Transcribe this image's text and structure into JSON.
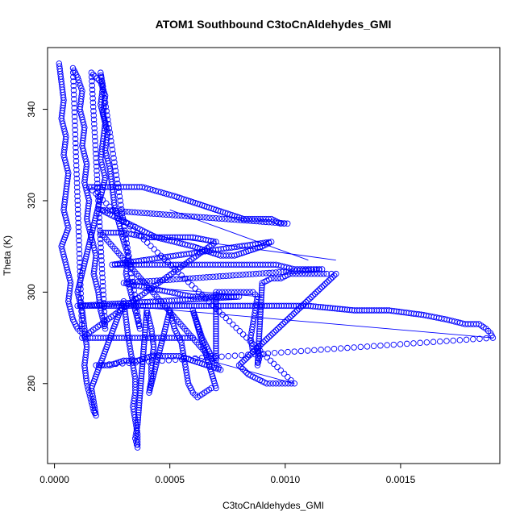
{
  "chart_data": {
    "type": "scatter",
    "title": "ATOM1 Southbound C3toCnAldehydes_GMI",
    "xlabel": "C3toCnAldehydes_GMI",
    "ylabel": "Theta (K)",
    "xlim": [
      -3e-05,
      0.00193
    ],
    "ylim": [
      262.5,
      353.5
    ],
    "xticks": [
      0,
      0.0005,
      0.001,
      0.0015
    ],
    "xtick_labels": [
      "0.0000",
      "0.0005",
      "0.0010",
      "0.0015"
    ],
    "yticks": [
      280,
      300,
      320,
      340
    ],
    "ytick_labels": [
      "280",
      "300",
      "320",
      "340"
    ],
    "grid": false,
    "color": "#0000ff",
    "series": [
      {
        "points": [
          [
            2e-05,
            350
          ],
          [
            3e-05,
            346
          ],
          [
            4e-05,
            342
          ],
          [
            3e-05,
            338
          ],
          [
            5e-05,
            334
          ],
          [
            4e-05,
            330
          ],
          [
            6e-05,
            326
          ],
          [
            5e-05,
            322
          ],
          [
            4e-05,
            318
          ],
          [
            6e-05,
            314
          ],
          [
            3e-05,
            310
          ],
          [
            5e-05,
            306
          ],
          [
            7e-05,
            302
          ],
          [
            6e-05,
            298
          ],
          [
            8e-05,
            294
          ],
          [
            0.0001,
            292
          ],
          [
            0.00012,
            291
          ],
          [
            8e-05,
            349
          ],
          [
            0.0001,
            347
          ],
          [
            0.00012,
            344
          ],
          [
            0.00011,
            340
          ],
          [
            0.00013,
            336
          ],
          [
            0.00012,
            332
          ],
          [
            0.00014,
            328
          ],
          [
            0.00013,
            324
          ],
          [
            0.00015,
            320
          ],
          [
            0.00014,
            316
          ],
          [
            0.00016,
            312
          ],
          [
            0.00018,
            308
          ],
          [
            0.00017,
            304
          ],
          [
            0.00019,
            300
          ],
          [
            0.0002,
            296
          ],
          [
            0.00022,
            292
          ],
          [
            0.00016,
            348
          ],
          [
            0.0002,
            346
          ],
          [
            0.00022,
            343
          ],
          [
            0.00021,
            339
          ],
          [
            0.00023,
            335
          ],
          [
            0.00022,
            331
          ],
          [
            0.00024,
            327
          ],
          [
            0.00025,
            323
          ],
          [
            0.00026,
            319
          ],
          [
            0.00028,
            315
          ],
          [
            0.0003,
            311
          ],
          [
            0.00032,
            308
          ],
          [
            0.00031,
            304
          ],
          [
            0.00033,
            300
          ],
          [
            0.00035,
            296
          ],
          [
            0.00037,
            292
          ],
          [
            0.0002,
            348
          ],
          [
            0.00021,
            345
          ],
          [
            0.0002,
            341
          ],
          [
            0.00022,
            337
          ],
          [
            0.00021,
            333
          ],
          [
            0.0002,
            329
          ],
          [
            0.00022,
            325
          ],
          [
            0.0001,
            300
          ],
          [
            0.00012,
            296
          ],
          [
            0.00013,
            292
          ],
          [
            0.00014,
            288
          ],
          [
            0.00013,
            284
          ],
          [
            0.00014,
            280
          ],
          [
            0.00015,
            278
          ],
          [
            0.00016,
            276
          ],
          [
            0.00017,
            274
          ],
          [
            0.00018,
            273
          ],
          [
            0.00017,
            276
          ],
          [
            0.00016,
            279
          ],
          [
            0.0003,
            298
          ],
          [
            0.00031,
            294
          ],
          [
            0.00032,
            290
          ],
          [
            0.00033,
            287
          ],
          [
            0.00034,
            284
          ],
          [
            0.00035,
            281
          ],
          [
            0.00035,
            278
          ],
          [
            0.00034,
            275
          ],
          [
            0.00035,
            272
          ],
          [
            0.00036,
            269
          ],
          [
            0.00036,
            266
          ],
          [
            0.00035,
            268
          ],
          [
            0.00036,
            271
          ],
          [
            0.0004,
            296
          ],
          [
            0.00042,
            292
          ],
          [
            0.00043,
            288
          ],
          [
            0.00042,
            284
          ],
          [
            0.00042,
            281
          ],
          [
            0.00041,
            278
          ],
          [
            0.0005,
            296
          ],
          [
            0.00052,
            292
          ],
          [
            0.00055,
            289
          ],
          [
            0.00056,
            286
          ],
          [
            0.00057,
            283
          ],
          [
            0.00058,
            280
          ],
          [
            0.0006,
            278
          ],
          [
            0.00062,
            277
          ],
          [
            0.00065,
            278
          ],
          [
            0.00068,
            279
          ],
          [
            0.0007,
            279
          ],
          [
            0.0006,
            296
          ],
          [
            0.00062,
            293
          ],
          [
            0.00064,
            290
          ],
          [
            0.00066,
            288
          ],
          [
            0.00068,
            286
          ],
          [
            0.0007,
            285
          ],
          [
            0.0007,
            300
          ],
          [
            0.00074,
            300
          ],
          [
            0.00078,
            300
          ],
          [
            0.00082,
            300
          ],
          [
            0.00086,
            300
          ],
          [
            0.00088,
            299
          ],
          [
            0.00087,
            296
          ],
          [
            0.00086,
            293
          ],
          [
            0.00085,
            290
          ],
          [
            0.00086,
            287
          ],
          [
            0.00088,
            287
          ],
          [
            0.00089,
            286
          ],
          [
            0.00088,
            284
          ],
          [
            0.0009,
            302
          ],
          [
            0.00094,
            303
          ],
          [
            0.00098,
            303
          ],
          [
            0.00102,
            304
          ],
          [
            0.00106,
            304
          ],
          [
            0.0011,
            304
          ],
          [
            0.00114,
            304
          ],
          [
            0.00118,
            304
          ],
          [
            0.0012,
            304
          ],
          [
            0.00122,
            304
          ],
          [
            0.0008,
            284
          ],
          [
            0.00084,
            282
          ],
          [
            0.00088,
            281
          ],
          [
            0.00092,
            280
          ],
          [
            0.00096,
            280
          ],
          [
            0.001,
            280
          ],
          [
            0.00104,
            280
          ],
          [
            0.00015,
            323
          ],
          [
            0.00022,
            323
          ],
          [
            0.0003,
            323
          ],
          [
            0.00038,
            323
          ],
          [
            0.00045,
            322
          ],
          [
            0.00052,
            321
          ],
          [
            0.00058,
            320
          ],
          [
            0.00064,
            319
          ],
          [
            0.0007,
            318
          ],
          [
            0.00076,
            317
          ],
          [
            0.00082,
            316
          ],
          [
            0.00088,
            316
          ],
          [
            0.00094,
            316
          ],
          [
            0.00098,
            315
          ],
          [
            0.00101,
            315
          ],
          [
            0.0002,
            318
          ],
          [
            0.00028,
            316
          ],
          [
            0.00036,
            314
          ],
          [
            0.00044,
            312
          ],
          [
            0.00052,
            311
          ],
          [
            0.0006,
            310
          ],
          [
            0.00066,
            309
          ],
          [
            0.00072,
            308
          ],
          [
            0.00078,
            308
          ],
          [
            0.00084,
            309
          ],
          [
            0.0009,
            310
          ],
          [
            0.00094,
            311
          ],
          [
            0.00025,
            306
          ],
          [
            0.00032,
            306
          ],
          [
            0.0004,
            306
          ],
          [
            0.00048,
            306
          ],
          [
            0.00056,
            306
          ],
          [
            0.00064,
            306
          ],
          [
            0.00072,
            306
          ],
          [
            0.0008,
            306
          ],
          [
            0.00088,
            306
          ],
          [
            0.00096,
            306
          ],
          [
            0.00104,
            305
          ],
          [
            0.0011,
            305
          ],
          [
            0.00116,
            305
          ],
          [
            0.0003,
            302
          ],
          [
            0.0004,
            301
          ],
          [
            0.0005,
            300
          ],
          [
            0.0006,
            299
          ],
          [
            0.0007,
            299
          ],
          [
            0.0008,
            299
          ],
          [
            0.0001,
            297
          ],
          [
            0.0003,
            297
          ],
          [
            0.0005,
            297
          ],
          [
            0.0007,
            297
          ],
          [
            0.0009,
            297
          ],
          [
            0.0011,
            297
          ],
          [
            0.0013,
            296
          ],
          [
            0.00145,
            296
          ],
          [
            0.0016,
            295
          ],
          [
            0.0017,
            294
          ],
          [
            0.00178,
            293
          ],
          [
            0.00184,
            293
          ],
          [
            0.00187,
            292
          ],
          [
            0.00189,
            291
          ],
          [
            0.0019,
            290
          ],
          [
            0.00018,
            284
          ],
          [
            0.00024,
            284
          ],
          [
            0.0003,
            285
          ],
          [
            0.00036,
            285
          ],
          [
            0.00042,
            286
          ],
          [
            0.00048,
            286
          ],
          [
            0.00054,
            286
          ],
          [
            0.0006,
            285
          ],
          [
            0.00066,
            284
          ],
          [
            0.00072,
            283
          ],
          [
            0.0002,
            313
          ],
          [
            0.0003,
            313
          ],
          [
            0.0004,
            312
          ],
          [
            0.0005,
            312
          ],
          [
            0.0006,
            312
          ],
          [
            0.0007,
            311
          ],
          [
            0.00012,
            290
          ],
          [
            0.0002,
            290
          ],
          [
            0.00028,
            290
          ],
          [
            0.00036,
            290
          ],
          [
            0.00044,
            290
          ],
          [
            0.00052,
            290
          ],
          [
            0.0006,
            290
          ]
        ]
      }
    ],
    "lines": [
      [
        [
          0.0005,
          318
        ],
        [
          0.0011,
          307
        ]
      ],
      [
        [
          0.0003,
          297
        ],
        [
          0.0019,
          290
        ]
      ],
      [
        [
          0.0006,
          286
        ],
        [
          0.00104,
          280
        ]
      ],
      [
        [
          0.0005,
          312
        ],
        [
          0.00122,
          307
        ]
      ],
      [
        [
          0.0004,
          301
        ],
        [
          0.0009,
          299
        ]
      ]
    ]
  }
}
